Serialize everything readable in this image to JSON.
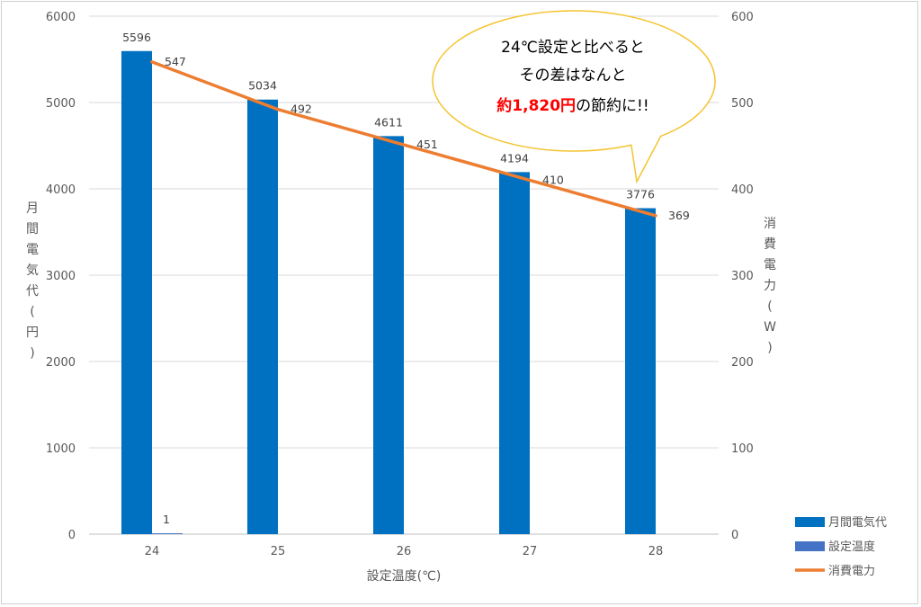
{
  "chart_data": {
    "type": "bar",
    "categories": [
      "24",
      "25",
      "26",
      "27",
      "28"
    ],
    "xlabel": "設定温度(℃)",
    "ylabel_left_chars": [
      "月",
      "間",
      "電",
      "気",
      "代",
      "(",
      "円",
      ")"
    ],
    "ylabel_right_chars": [
      "消",
      "費",
      "電",
      "力",
      "(",
      "W",
      ")"
    ],
    "ylim_left": [
      0,
      6000
    ],
    "yticks_left": [
      0,
      1000,
      2000,
      3000,
      4000,
      5000,
      6000
    ],
    "ylim_right": [
      0,
      600
    ],
    "yticks_right": [
      0,
      100,
      200,
      300,
      400,
      500,
      600
    ],
    "grid": true,
    "legend_position": "bottom-right",
    "series": [
      {
        "name": "月間電気代",
        "kind": "bar",
        "axis": "left",
        "color": "#0070c0",
        "values": [
          5596,
          5034,
          4611,
          4194,
          3776
        ]
      },
      {
        "name": "設定温度",
        "kind": "bar",
        "axis": "right",
        "color": "#4472c4",
        "values": [
          1,
          null,
          null,
          null,
          null
        ]
      },
      {
        "name": "消費電力",
        "kind": "line",
        "axis": "right",
        "color": "#ed7d31",
        "values": [
          547,
          492,
          451,
          410,
          369
        ]
      }
    ],
    "annotation": {
      "line1": "24℃設定と比べると",
      "line2": "その差はなんと",
      "line3_highlight": "約1,820円",
      "line3_rest": "の節約に!!",
      "fill": "#ffffff",
      "stroke": "#f4c430"
    }
  }
}
